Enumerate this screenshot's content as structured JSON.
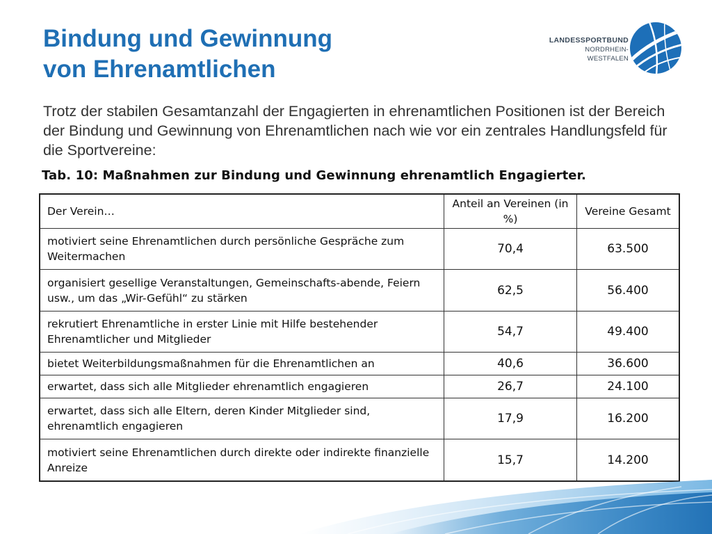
{
  "title": {
    "line1": "Bindung und Gewinnung",
    "line2": "von Ehrenamtlichen"
  },
  "logo": {
    "line1": "LANDESSPORTBUND",
    "line2": "NORDRHEIN-WESTFALEN",
    "icon": "lsb-nrw-logo-icon"
  },
  "intro": "Trotz der stabilen Gesamtanzahl der Engagierten in ehrenamtlichen Positionen ist der Bereich der Bindung und Gewinnung von Ehrenamtlichen nach wie vor ein zentrales Handlungsfeld für die Sportvereine:",
  "table": {
    "caption": "Tab. 10:  Maßnahmen zur Bindung und Gewinnung ehrenamtlich Engagierter.",
    "headers": [
      "Der Verein…",
      "Anteil an Vereinen (in %)",
      "Vereine Gesamt"
    ],
    "rows": [
      [
        "motiviert seine Ehrenamtlichen durch persönliche Gespräche zum Weitermachen",
        "70,4",
        "63.500"
      ],
      [
        "organisiert gesellige Veranstaltungen, Gemeinschafts-abende, Feiern usw., um das „Wir-Gefühl“ zu stärken",
        "62,5",
        "56.400"
      ],
      [
        "rekrutiert Ehrenamtliche in erster Linie mit Hilfe bestehender Ehrenamtlicher und Mitglieder",
        "54,7",
        "49.400"
      ],
      [
        "bietet Weiterbildungsmaßnahmen für die Ehrenamtlichen an",
        "40,6",
        "36.600"
      ],
      [
        "erwartet, dass sich alle Mitglieder ehrenamtlich engagieren",
        "26,7",
        "24.100"
      ],
      [
        "erwartet, dass sich alle Eltern, deren Kinder Mitglieder sind, ehrenamtlich engagieren",
        "17,9",
        "16.200"
      ],
      [
        "motiviert seine Ehrenamtlichen durch direkte oder indirekte finanzielle Anreize",
        "15,7",
        "14.200"
      ]
    ]
  },
  "colors": {
    "title": "#1f6fb4",
    "logo_blue": "#1d6fb8",
    "swoosh": "#2c86c8"
  }
}
